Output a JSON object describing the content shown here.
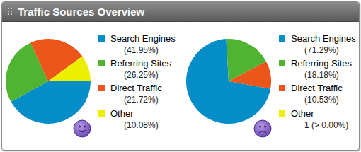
{
  "header": {
    "title": "Traffic Sources Overview"
  },
  "chart_data": [
    {
      "type": "pie",
      "categories": [
        "Search Engines",
        "Referring Sites",
        "Direct Traffic",
        "Other"
      ],
      "values": [
        41.95,
        26.25,
        21.72,
        10.08
      ],
      "value_labels": [
        "(41.95%)",
        "(26.25%)",
        "(21.72%)",
        "(10.08%)"
      ],
      "colors": [
        "#058dc7",
        "#50b432",
        "#ed561b",
        "#edef00"
      ]
    },
    {
      "type": "pie",
      "categories": [
        "Search Engines",
        "Referring Sites",
        "Direct Traffic",
        "Other"
      ],
      "values": [
        71.29,
        18.18,
        10.53,
        0.001
      ],
      "value_labels": [
        "(71.29%)",
        "(18.18%)",
        "(10.53%)",
        "1 (> 0.00%)"
      ],
      "colors": [
        "#058dc7",
        "#50b432",
        "#ed561b",
        "#edef00"
      ]
    }
  ]
}
